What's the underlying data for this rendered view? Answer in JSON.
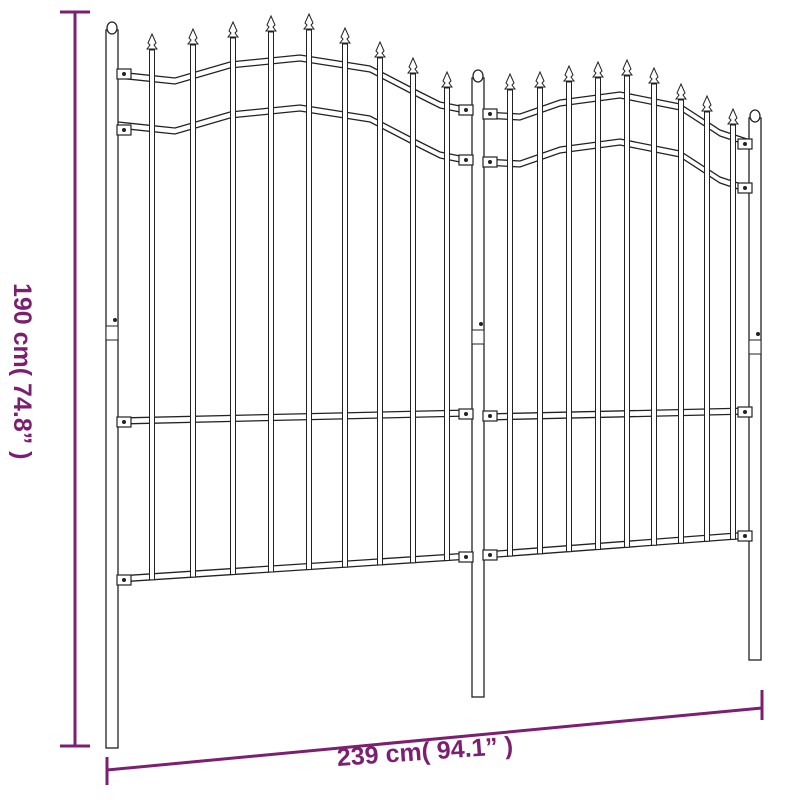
{
  "dimensions": {
    "height_label": "190 cm( 74.8” )",
    "width_label": "239 cm( 94.1” )"
  },
  "colors": {
    "dimension": "#7d1f70",
    "line": "#222222"
  }
}
